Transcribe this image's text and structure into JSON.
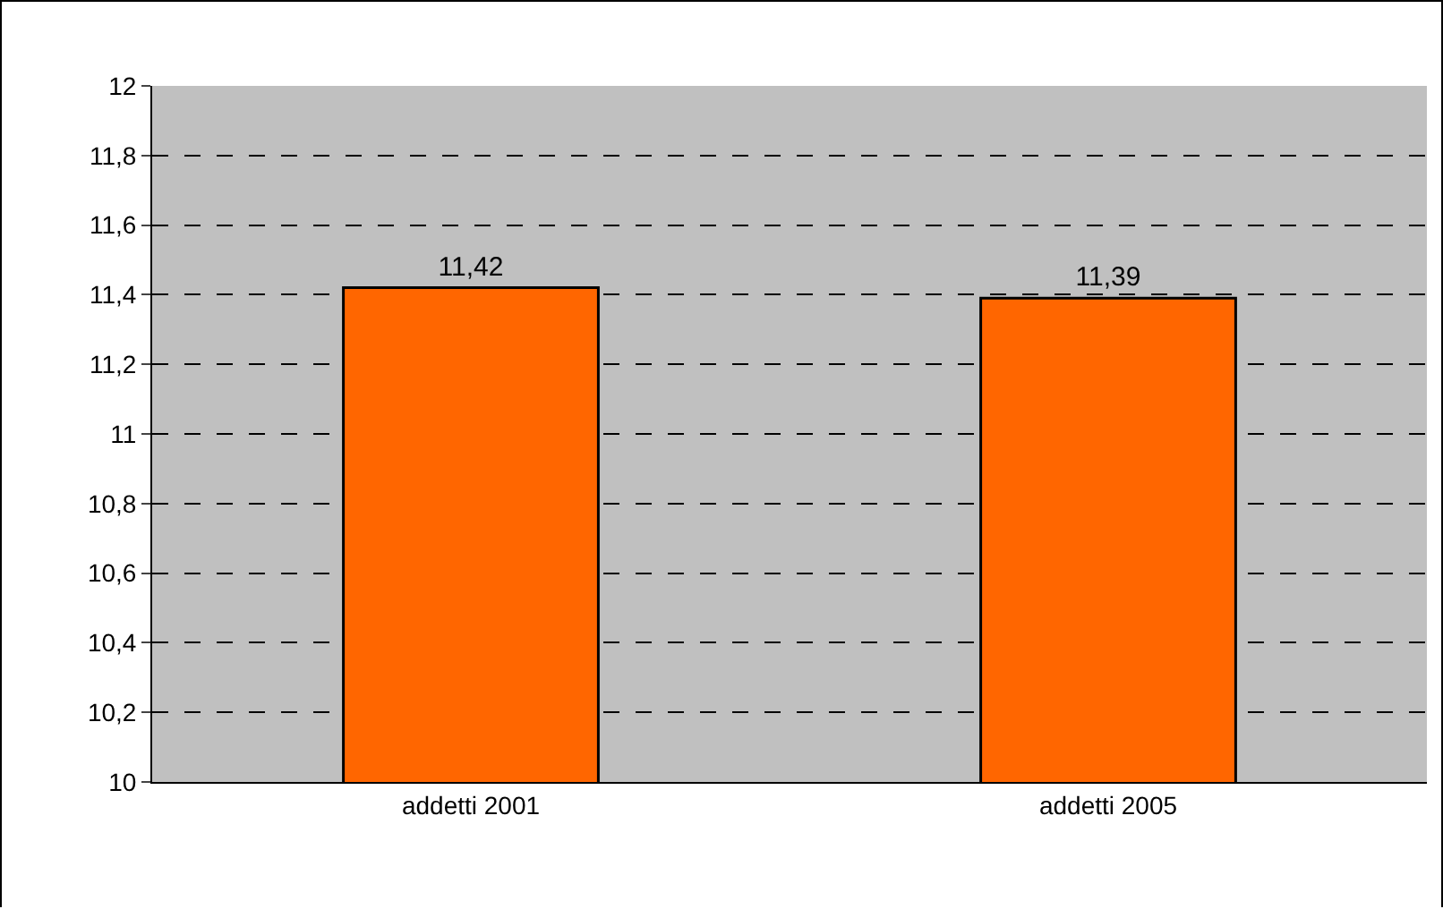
{
  "chart_data": {
    "type": "bar",
    "categories": [
      "addetti 2001",
      "addetti 2005"
    ],
    "values": [
      11.42,
      11.39
    ],
    "color": "#ff6600",
    "value_labels": [
      "11,42",
      "11,39"
    ],
    "ylim": [
      10,
      12
    ],
    "yticks": [
      10,
      {
        "value": 10.2,
        "label": "10,2"
      },
      {
        "value": 10.4,
        "label": "10,4"
      },
      {
        "value": 10.6,
        "label": "10,6"
      },
      {
        "value": 10.8,
        "label": "10,8"
      },
      11,
      {
        "value": 11.2,
        "label": "11,2"
      },
      {
        "value": 11.4,
        "label": "11,4"
      },
      {
        "value": 11.6,
        "label": "11,6"
      },
      {
        "value": 11.8,
        "label": "11,8"
      },
      12
    ],
    "grid": "y"
  }
}
